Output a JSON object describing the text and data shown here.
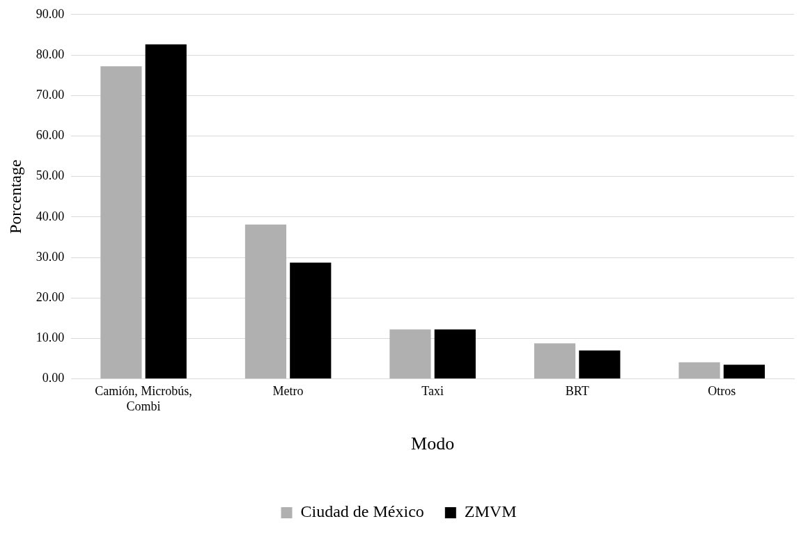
{
  "chart_data": {
    "type": "bar",
    "xlabel": "Modo",
    "ylabel": "Porcentage",
    "categories": [
      "Camión, Microbús, Combi",
      "Metro",
      "Taxi",
      "BRT",
      "Otros"
    ],
    "series": [
      {
        "name": "Ciudad de México",
        "color": "#b0b0b0",
        "values": [
          77.2,
          38.1,
          12.2,
          8.8,
          4.1
        ]
      },
      {
        "name": "ZMVM",
        "color": "#000000",
        "values": [
          82.6,
          28.7,
          12.2,
          7.0,
          3.5
        ]
      }
    ],
    "ylim": [
      0,
      90
    ],
    "yticks": [
      {
        "value": 0,
        "label": "0.00"
      },
      {
        "value": 10,
        "label": "10.00"
      },
      {
        "value": 20,
        "label": "20.00"
      },
      {
        "value": 30,
        "label": "30.00"
      },
      {
        "value": 40,
        "label": "40.00"
      },
      {
        "value": 50,
        "label": "50.00"
      },
      {
        "value": 60,
        "label": "60.00"
      },
      {
        "value": 70,
        "label": "70.00"
      },
      {
        "value": 80,
        "label": "80.00"
      },
      {
        "value": 90,
        "label": "90.00"
      }
    ],
    "grid": "y",
    "legend": "bottom"
  }
}
